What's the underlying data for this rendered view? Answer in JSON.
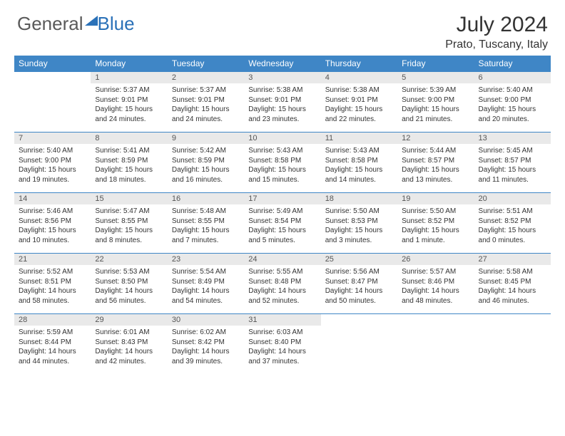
{
  "logo": {
    "text1": "General",
    "text2": "Blue"
  },
  "title": "July 2024",
  "location": "Prato, Tuscany, Italy",
  "colors": {
    "header_bg": "#3f86c6",
    "header_text": "#ffffff",
    "daynum_bg": "#e9e9e9",
    "border": "#3f86c6",
    "logo_gray": "#5a5a5a",
    "logo_blue": "#2a71b8"
  },
  "weekdays": [
    "Sunday",
    "Monday",
    "Tuesday",
    "Wednesday",
    "Thursday",
    "Friday",
    "Saturday"
  ],
  "weeks": [
    [
      {
        "day": "",
        "sunrise": "",
        "sunset": "",
        "daylight": ""
      },
      {
        "day": "1",
        "sunrise": "Sunrise: 5:37 AM",
        "sunset": "Sunset: 9:01 PM",
        "daylight": "Daylight: 15 hours and 24 minutes."
      },
      {
        "day": "2",
        "sunrise": "Sunrise: 5:37 AM",
        "sunset": "Sunset: 9:01 PM",
        "daylight": "Daylight: 15 hours and 24 minutes."
      },
      {
        "day": "3",
        "sunrise": "Sunrise: 5:38 AM",
        "sunset": "Sunset: 9:01 PM",
        "daylight": "Daylight: 15 hours and 23 minutes."
      },
      {
        "day": "4",
        "sunrise": "Sunrise: 5:38 AM",
        "sunset": "Sunset: 9:01 PM",
        "daylight": "Daylight: 15 hours and 22 minutes."
      },
      {
        "day": "5",
        "sunrise": "Sunrise: 5:39 AM",
        "sunset": "Sunset: 9:00 PM",
        "daylight": "Daylight: 15 hours and 21 minutes."
      },
      {
        "day": "6",
        "sunrise": "Sunrise: 5:40 AM",
        "sunset": "Sunset: 9:00 PM",
        "daylight": "Daylight: 15 hours and 20 minutes."
      }
    ],
    [
      {
        "day": "7",
        "sunrise": "Sunrise: 5:40 AM",
        "sunset": "Sunset: 9:00 PM",
        "daylight": "Daylight: 15 hours and 19 minutes."
      },
      {
        "day": "8",
        "sunrise": "Sunrise: 5:41 AM",
        "sunset": "Sunset: 8:59 PM",
        "daylight": "Daylight: 15 hours and 18 minutes."
      },
      {
        "day": "9",
        "sunrise": "Sunrise: 5:42 AM",
        "sunset": "Sunset: 8:59 PM",
        "daylight": "Daylight: 15 hours and 16 minutes."
      },
      {
        "day": "10",
        "sunrise": "Sunrise: 5:43 AM",
        "sunset": "Sunset: 8:58 PM",
        "daylight": "Daylight: 15 hours and 15 minutes."
      },
      {
        "day": "11",
        "sunrise": "Sunrise: 5:43 AM",
        "sunset": "Sunset: 8:58 PM",
        "daylight": "Daylight: 15 hours and 14 minutes."
      },
      {
        "day": "12",
        "sunrise": "Sunrise: 5:44 AM",
        "sunset": "Sunset: 8:57 PM",
        "daylight": "Daylight: 15 hours and 13 minutes."
      },
      {
        "day": "13",
        "sunrise": "Sunrise: 5:45 AM",
        "sunset": "Sunset: 8:57 PM",
        "daylight": "Daylight: 15 hours and 11 minutes."
      }
    ],
    [
      {
        "day": "14",
        "sunrise": "Sunrise: 5:46 AM",
        "sunset": "Sunset: 8:56 PM",
        "daylight": "Daylight: 15 hours and 10 minutes."
      },
      {
        "day": "15",
        "sunrise": "Sunrise: 5:47 AM",
        "sunset": "Sunset: 8:55 PM",
        "daylight": "Daylight: 15 hours and 8 minutes."
      },
      {
        "day": "16",
        "sunrise": "Sunrise: 5:48 AM",
        "sunset": "Sunset: 8:55 PM",
        "daylight": "Daylight: 15 hours and 7 minutes."
      },
      {
        "day": "17",
        "sunrise": "Sunrise: 5:49 AM",
        "sunset": "Sunset: 8:54 PM",
        "daylight": "Daylight: 15 hours and 5 minutes."
      },
      {
        "day": "18",
        "sunrise": "Sunrise: 5:50 AM",
        "sunset": "Sunset: 8:53 PM",
        "daylight": "Daylight: 15 hours and 3 minutes."
      },
      {
        "day": "19",
        "sunrise": "Sunrise: 5:50 AM",
        "sunset": "Sunset: 8:52 PM",
        "daylight": "Daylight: 15 hours and 1 minute."
      },
      {
        "day": "20",
        "sunrise": "Sunrise: 5:51 AM",
        "sunset": "Sunset: 8:52 PM",
        "daylight": "Daylight: 15 hours and 0 minutes."
      }
    ],
    [
      {
        "day": "21",
        "sunrise": "Sunrise: 5:52 AM",
        "sunset": "Sunset: 8:51 PM",
        "daylight": "Daylight: 14 hours and 58 minutes."
      },
      {
        "day": "22",
        "sunrise": "Sunrise: 5:53 AM",
        "sunset": "Sunset: 8:50 PM",
        "daylight": "Daylight: 14 hours and 56 minutes."
      },
      {
        "day": "23",
        "sunrise": "Sunrise: 5:54 AM",
        "sunset": "Sunset: 8:49 PM",
        "daylight": "Daylight: 14 hours and 54 minutes."
      },
      {
        "day": "24",
        "sunrise": "Sunrise: 5:55 AM",
        "sunset": "Sunset: 8:48 PM",
        "daylight": "Daylight: 14 hours and 52 minutes."
      },
      {
        "day": "25",
        "sunrise": "Sunrise: 5:56 AM",
        "sunset": "Sunset: 8:47 PM",
        "daylight": "Daylight: 14 hours and 50 minutes."
      },
      {
        "day": "26",
        "sunrise": "Sunrise: 5:57 AM",
        "sunset": "Sunset: 8:46 PM",
        "daylight": "Daylight: 14 hours and 48 minutes."
      },
      {
        "day": "27",
        "sunrise": "Sunrise: 5:58 AM",
        "sunset": "Sunset: 8:45 PM",
        "daylight": "Daylight: 14 hours and 46 minutes."
      }
    ],
    [
      {
        "day": "28",
        "sunrise": "Sunrise: 5:59 AM",
        "sunset": "Sunset: 8:44 PM",
        "daylight": "Daylight: 14 hours and 44 minutes."
      },
      {
        "day": "29",
        "sunrise": "Sunrise: 6:01 AM",
        "sunset": "Sunset: 8:43 PM",
        "daylight": "Daylight: 14 hours and 42 minutes."
      },
      {
        "day": "30",
        "sunrise": "Sunrise: 6:02 AM",
        "sunset": "Sunset: 8:42 PM",
        "daylight": "Daylight: 14 hours and 39 minutes."
      },
      {
        "day": "31",
        "sunrise": "Sunrise: 6:03 AM",
        "sunset": "Sunset: 8:40 PM",
        "daylight": "Daylight: 14 hours and 37 minutes."
      },
      {
        "day": "",
        "sunrise": "",
        "sunset": "",
        "daylight": ""
      },
      {
        "day": "",
        "sunrise": "",
        "sunset": "",
        "daylight": ""
      },
      {
        "day": "",
        "sunrise": "",
        "sunset": "",
        "daylight": ""
      }
    ]
  ]
}
